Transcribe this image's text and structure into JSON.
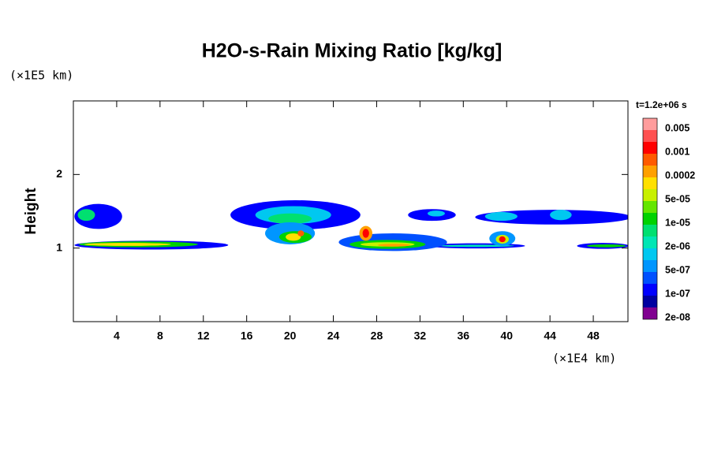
{
  "chart_data": {
    "type": "contour",
    "title": "H2O-s-Rain Mixing Ratio [kg/kg]",
    "y_label": "Height",
    "y_unit": "(×1E5 km)",
    "x_unit": "(×1E4 km)",
    "colorbar_title": "t=1.2e+06 s",
    "xlim": [
      0,
      51.2
    ],
    "ylim": [
      0,
      3
    ],
    "xticks": [
      4,
      8,
      12,
      16,
      20,
      24,
      28,
      32,
      36,
      40,
      44,
      48
    ],
    "yticks": [
      1,
      2
    ],
    "levels": [
      "#ff9c9c",
      "#ff5050",
      "#ff0000",
      "#ff5a00",
      "#ffa000",
      "#ffe000",
      "#c8f000",
      "#64e600",
      "#00d200",
      "#00e070",
      "#00e6b4",
      "#00c8f0",
      "#0096ff",
      "#0050ff",
      "#0000ff",
      "#0000a0",
      "#800090"
    ],
    "level_labels": [
      "0.005",
      "0.001",
      "0.0002",
      "5e-05",
      "1e-05",
      "2e-06",
      "5e-07",
      "1e-07",
      "2e-08"
    ],
    "regions": [
      {
        "x": 2.3,
        "y": 1.43,
        "rx": 2.2,
        "ry": 0.17,
        "level": 14
      },
      {
        "x": 1.2,
        "y": 1.45,
        "rx": 0.8,
        "ry": 0.08,
        "level": 9
      },
      {
        "x": 7.2,
        "y": 1.04,
        "rx": 7.1,
        "ry": 0.06,
        "level": 14
      },
      {
        "x": 6,
        "y": 1.05,
        "rx": 5.5,
        "ry": 0.04,
        "level": 8
      },
      {
        "x": 5,
        "y": 1.05,
        "rx": 4,
        "ry": 0.02,
        "level": 5
      },
      {
        "x": 37.2,
        "y": 1.03,
        "rx": 4.5,
        "ry": 0.035,
        "level": 14
      },
      {
        "x": 37.2,
        "y": 1.03,
        "rx": 3.5,
        "ry": 0.015,
        "level": 10
      },
      {
        "x": 48.9,
        "y": 1.03,
        "rx": 2.4,
        "ry": 0.04,
        "level": 14
      },
      {
        "x": 49.2,
        "y": 1.03,
        "rx": 1.8,
        "ry": 0.02,
        "level": 8
      },
      {
        "x": 20.5,
        "y": 1.45,
        "rx": 6,
        "ry": 0.2,
        "level": 14
      },
      {
        "x": 20.3,
        "y": 1.45,
        "rx": 3.5,
        "ry": 0.12,
        "level": 11
      },
      {
        "x": 20,
        "y": 1.4,
        "rx": 2,
        "ry": 0.07,
        "level": 9
      },
      {
        "x": 20,
        "y": 1.2,
        "rx": 2.3,
        "ry": 0.15,
        "level": 12
      },
      {
        "x": 20.5,
        "y": 1.15,
        "rx": 1.5,
        "ry": 0.08,
        "level": 8
      },
      {
        "x": 20.3,
        "y": 1.15,
        "rx": 0.7,
        "ry": 0.05,
        "level": 5
      },
      {
        "x": 21,
        "y": 1.2,
        "rx": 0.3,
        "ry": 0.04,
        "level": 3
      },
      {
        "x": 29.5,
        "y": 1.08,
        "rx": 5,
        "ry": 0.12,
        "level": 13
      },
      {
        "x": 29,
        "y": 1.05,
        "rx": 3.5,
        "ry": 0.06,
        "level": 8
      },
      {
        "x": 29,
        "y": 1.05,
        "rx": 2.5,
        "ry": 0.03,
        "level": 6
      },
      {
        "x": 29.6,
        "y": 1.04,
        "rx": 1.5,
        "ry": 0.02,
        "level": 4
      },
      {
        "x": 27,
        "y": 1.2,
        "rx": 0.6,
        "ry": 0.1,
        "level": 4
      },
      {
        "x": 27,
        "y": 1.2,
        "rx": 0.3,
        "ry": 0.06,
        "level": 2
      },
      {
        "x": 33.1,
        "y": 1.45,
        "rx": 2.2,
        "ry": 0.08,
        "level": 14
      },
      {
        "x": 33.5,
        "y": 1.47,
        "rx": 0.8,
        "ry": 0.04,
        "level": 11
      },
      {
        "x": 44.3,
        "y": 1.42,
        "rx": 7.2,
        "ry": 0.1,
        "level": 14
      },
      {
        "x": 39.5,
        "y": 1.43,
        "rx": 1.5,
        "ry": 0.06,
        "level": 11
      },
      {
        "x": 45,
        "y": 1.45,
        "rx": 1,
        "ry": 0.07,
        "level": 11
      },
      {
        "x": 39.6,
        "y": 1.13,
        "rx": 1.2,
        "ry": 0.1,
        "level": 12
      },
      {
        "x": 39.6,
        "y": 1.12,
        "rx": 0.6,
        "ry": 0.06,
        "level": 6
      },
      {
        "x": 39.6,
        "y": 1.12,
        "rx": 0.3,
        "ry": 0.04,
        "level": 2
      }
    ]
  }
}
